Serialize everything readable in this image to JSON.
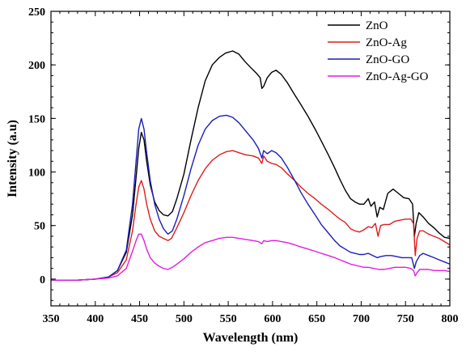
{
  "chart_data": {
    "type": "line",
    "title": "",
    "xlabel": "Wavelength (nm)",
    "ylabel": "Intensity (a.u)",
    "xlim": [
      350,
      800
    ],
    "ylim": [
      -25,
      250
    ],
    "xticks": [
      350,
      400,
      450,
      500,
      550,
      600,
      650,
      700,
      750,
      800
    ],
    "yticks": [
      0,
      50,
      100,
      150,
      200,
      250
    ],
    "grid": false,
    "legend_position": "top-right",
    "series": [
      {
        "name": "ZnO",
        "color": "#000000",
        "points": [
          [
            350,
            -1
          ],
          [
            380,
            -1
          ],
          [
            400,
            0
          ],
          [
            415,
            2
          ],
          [
            425,
            8
          ],
          [
            435,
            25
          ],
          [
            442,
            60
          ],
          [
            446,
            95
          ],
          [
            449,
            122
          ],
          [
            452,
            137
          ],
          [
            455,
            130
          ],
          [
            458,
            110
          ],
          [
            462,
            88
          ],
          [
            467,
            72
          ],
          [
            472,
            64
          ],
          [
            477,
            60
          ],
          [
            482,
            59
          ],
          [
            487,
            63
          ],
          [
            492,
            75
          ],
          [
            500,
            98
          ],
          [
            508,
            130
          ],
          [
            516,
            160
          ],
          [
            524,
            185
          ],
          [
            532,
            200
          ],
          [
            540,
            207
          ],
          [
            547,
            211
          ],
          [
            555,
            213
          ],
          [
            562,
            210
          ],
          [
            569,
            203
          ],
          [
            576,
            197
          ],
          [
            582,
            192
          ],
          [
            586,
            188
          ],
          [
            588,
            178
          ],
          [
            590,
            180
          ],
          [
            594,
            188
          ],
          [
            599,
            193
          ],
          [
            604,
            195
          ],
          [
            610,
            191
          ],
          [
            617,
            183
          ],
          [
            625,
            172
          ],
          [
            632,
            163
          ],
          [
            640,
            152
          ],
          [
            648,
            140
          ],
          [
            655,
            129
          ],
          [
            663,
            116
          ],
          [
            670,
            104
          ],
          [
            676,
            93
          ],
          [
            682,
            83
          ],
          [
            688,
            75
          ],
          [
            693,
            72
          ],
          [
            698,
            70
          ],
          [
            703,
            70
          ],
          [
            708,
            75
          ],
          [
            711,
            68
          ],
          [
            715,
            72
          ],
          [
            718,
            58
          ],
          [
            721,
            67
          ],
          [
            725,
            65
          ],
          [
            730,
            80
          ],
          [
            736,
            84
          ],
          [
            742,
            80
          ],
          [
            748,
            76
          ],
          [
            754,
            75
          ],
          [
            758,
            70
          ],
          [
            760,
            40
          ],
          [
            762,
            52
          ],
          [
            765,
            62
          ],
          [
            770,
            58
          ],
          [
            776,
            52
          ],
          [
            782,
            48
          ],
          [
            788,
            43
          ],
          [
            794,
            39
          ],
          [
            800,
            38
          ]
        ]
      },
      {
        "name": "ZnO-Ag",
        "color": "#dd1e1e",
        "points": [
          [
            350,
            -1
          ],
          [
            380,
            -1
          ],
          [
            400,
            0
          ],
          [
            415,
            2
          ],
          [
            425,
            6
          ],
          [
            435,
            18
          ],
          [
            442,
            45
          ],
          [
            446,
            70
          ],
          [
            449,
            86
          ],
          [
            452,
            92
          ],
          [
            455,
            84
          ],
          [
            458,
            70
          ],
          [
            462,
            56
          ],
          [
            467,
            45
          ],
          [
            472,
            40
          ],
          [
            477,
            38
          ],
          [
            482,
            36
          ],
          [
            486,
            38
          ],
          [
            492,
            48
          ],
          [
            500,
            62
          ],
          [
            508,
            78
          ],
          [
            516,
            92
          ],
          [
            524,
            103
          ],
          [
            532,
            111
          ],
          [
            540,
            116
          ],
          [
            548,
            119
          ],
          [
            555,
            120
          ],
          [
            562,
            118
          ],
          [
            570,
            116
          ],
          [
            578,
            115
          ],
          [
            584,
            113
          ],
          [
            588,
            108
          ],
          [
            590,
            115
          ],
          [
            594,
            110
          ],
          [
            599,
            108
          ],
          [
            604,
            107
          ],
          [
            610,
            104
          ],
          [
            617,
            98
          ],
          [
            625,
            92
          ],
          [
            632,
            86
          ],
          [
            640,
            80
          ],
          [
            648,
            75
          ],
          [
            655,
            70
          ],
          [
            663,
            65
          ],
          [
            670,
            60
          ],
          [
            676,
            56
          ],
          [
            682,
            53
          ],
          [
            688,
            47
          ],
          [
            693,
            45
          ],
          [
            698,
            44
          ],
          [
            703,
            46
          ],
          [
            708,
            49
          ],
          [
            712,
            48
          ],
          [
            716,
            52
          ],
          [
            719,
            40
          ],
          [
            722,
            50
          ],
          [
            726,
            51
          ],
          [
            732,
            51
          ],
          [
            738,
            54
          ],
          [
            744,
            55
          ],
          [
            750,
            56
          ],
          [
            756,
            56
          ],
          [
            759,
            52
          ],
          [
            761,
            22
          ],
          [
            763,
            38
          ],
          [
            766,
            45
          ],
          [
            770,
            45
          ],
          [
            776,
            42
          ],
          [
            782,
            40
          ],
          [
            788,
            38
          ],
          [
            794,
            35
          ],
          [
            800,
            32
          ]
        ]
      },
      {
        "name": "ZnO-GO",
        "color": "#1d1db8",
        "points": [
          [
            350,
            -1
          ],
          [
            380,
            -1
          ],
          [
            400,
            0
          ],
          [
            415,
            2
          ],
          [
            425,
            8
          ],
          [
            435,
            27
          ],
          [
            442,
            70
          ],
          [
            446,
            110
          ],
          [
            449,
            140
          ],
          [
            452,
            150
          ],
          [
            455,
            140
          ],
          [
            458,
            118
          ],
          [
            462,
            92
          ],
          [
            467,
            70
          ],
          [
            472,
            56
          ],
          [
            477,
            47
          ],
          [
            482,
            42
          ],
          [
            487,
            45
          ],
          [
            492,
            56
          ],
          [
            500,
            78
          ],
          [
            508,
            103
          ],
          [
            516,
            125
          ],
          [
            524,
            140
          ],
          [
            532,
            148
          ],
          [
            540,
            152
          ],
          [
            548,
            153
          ],
          [
            555,
            151
          ],
          [
            562,
            146
          ],
          [
            570,
            138
          ],
          [
            578,
            130
          ],
          [
            584,
            122
          ],
          [
            588,
            113
          ],
          [
            590,
            120
          ],
          [
            594,
            117
          ],
          [
            599,
            120
          ],
          [
            604,
            118
          ],
          [
            610,
            113
          ],
          [
            617,
            104
          ],
          [
            625,
            92
          ],
          [
            632,
            81
          ],
          [
            640,
            70
          ],
          [
            648,
            60
          ],
          [
            655,
            51
          ],
          [
            663,
            43
          ],
          [
            670,
            36
          ],
          [
            676,
            31
          ],
          [
            682,
            28
          ],
          [
            688,
            25
          ],
          [
            693,
            24
          ],
          [
            698,
            23
          ],
          [
            703,
            23
          ],
          [
            708,
            24
          ],
          [
            713,
            22
          ],
          [
            718,
            20
          ],
          [
            722,
            21
          ],
          [
            728,
            22
          ],
          [
            734,
            22
          ],
          [
            740,
            21
          ],
          [
            746,
            20
          ],
          [
            752,
            20
          ],
          [
            757,
            20
          ],
          [
            760,
            10
          ],
          [
            762,
            16
          ],
          [
            766,
            22
          ],
          [
            770,
            24
          ],
          [
            776,
            22
          ],
          [
            782,
            20
          ],
          [
            788,
            18
          ],
          [
            794,
            16
          ],
          [
            800,
            14
          ]
        ]
      },
      {
        "name": "ZnO-Ag-GO",
        "color": "#e01ee0",
        "points": [
          [
            350,
            -1
          ],
          [
            380,
            -1
          ],
          [
            400,
            0
          ],
          [
            415,
            1
          ],
          [
            425,
            3
          ],
          [
            435,
            10
          ],
          [
            442,
            26
          ],
          [
            446,
            36
          ],
          [
            449,
            42
          ],
          [
            452,
            42
          ],
          [
            455,
            36
          ],
          [
            458,
            28
          ],
          [
            462,
            20
          ],
          [
            467,
            15
          ],
          [
            472,
            12
          ],
          [
            477,
            10
          ],
          [
            482,
            9
          ],
          [
            487,
            11
          ],
          [
            492,
            14
          ],
          [
            500,
            19
          ],
          [
            508,
            25
          ],
          [
            516,
            30
          ],
          [
            524,
            34
          ],
          [
            532,
            36
          ],
          [
            540,
            38
          ],
          [
            548,
            39
          ],
          [
            555,
            39
          ],
          [
            562,
            38
          ],
          [
            570,
            37
          ],
          [
            578,
            36
          ],
          [
            584,
            35
          ],
          [
            588,
            33
          ],
          [
            590,
            36
          ],
          [
            594,
            35
          ],
          [
            599,
            36
          ],
          [
            604,
            36
          ],
          [
            610,
            35
          ],
          [
            617,
            34
          ],
          [
            625,
            32
          ],
          [
            632,
            30
          ],
          [
            640,
            28
          ],
          [
            648,
            26
          ],
          [
            655,
            24
          ],
          [
            663,
            22
          ],
          [
            670,
            20
          ],
          [
            676,
            18
          ],
          [
            682,
            16
          ],
          [
            688,
            14
          ],
          [
            693,
            13
          ],
          [
            698,
            12
          ],
          [
            703,
            11
          ],
          [
            708,
            11
          ],
          [
            714,
            10
          ],
          [
            720,
            9
          ],
          [
            726,
            9
          ],
          [
            732,
            10
          ],
          [
            738,
            11
          ],
          [
            744,
            11
          ],
          [
            750,
            11
          ],
          [
            756,
            10
          ],
          [
            759,
            8
          ],
          [
            761,
            3
          ],
          [
            763,
            6
          ],
          [
            766,
            9
          ],
          [
            770,
            9
          ],
          [
            776,
            9
          ],
          [
            782,
            8
          ],
          [
            788,
            8
          ],
          [
            794,
            8
          ],
          [
            800,
            7
          ]
        ]
      }
    ]
  }
}
